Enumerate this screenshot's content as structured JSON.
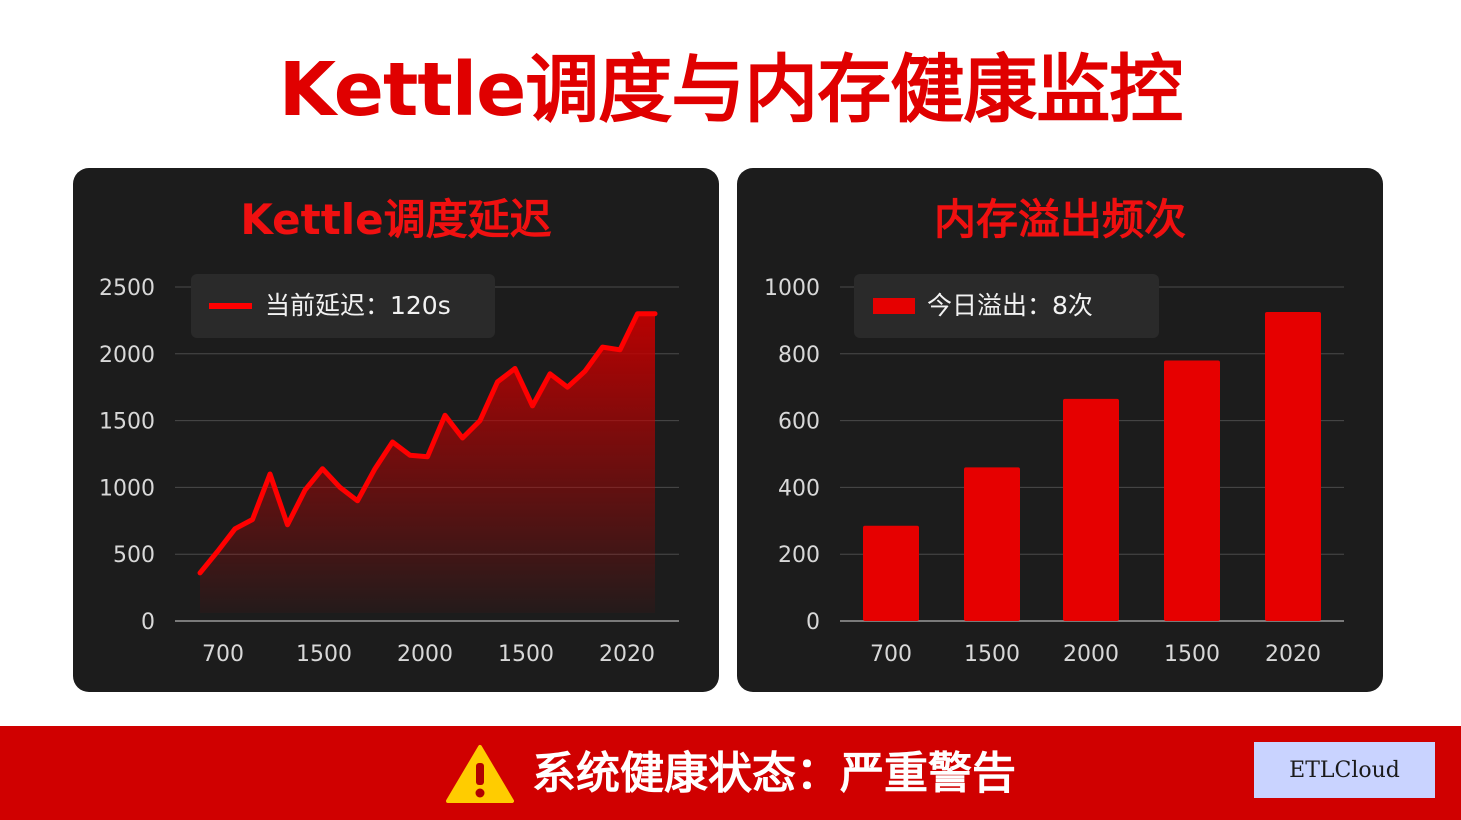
{
  "page": {
    "title": "Kettle调度与内存健康监控"
  },
  "banner": {
    "icon": "warning-icon",
    "status_text": "系统健康状态：严重警告",
    "badge": "ETLCloud",
    "colors": {
      "background": "#d00000",
      "icon": "#ffcc00",
      "badge_bg": "#c9d3ff"
    }
  },
  "chart_data": [
    {
      "type": "area",
      "title": "Kettle调度延迟",
      "legend": {
        "label": "当前延迟：120s",
        "placement": "top-left"
      },
      "x_tick_labels": [
        "700",
        "1500",
        "2000",
        "1500",
        "2020"
      ],
      "y_ticks": [
        0,
        500,
        1000,
        1500,
        2000,
        2500
      ],
      "ylim": [
        0,
        2500
      ],
      "grid": true,
      "color": "#ff0000",
      "values": [
        360,
        520,
        690,
        760,
        1100,
        720,
        980,
        1140,
        1000,
        900,
        1140,
        1340,
        1240,
        1230,
        1540,
        1370,
        1500,
        1790,
        1890,
        1610,
        1850,
        1750,
        1870,
        2050,
        2030,
        2300,
        2300
      ]
    },
    {
      "type": "bar",
      "title": "内存溢出频次",
      "legend": {
        "label": "今日溢出：8次",
        "placement": "top-left"
      },
      "categories": [
        "700",
        "1500",
        "2000",
        "1500",
        "2020"
      ],
      "values": [
        285,
        460,
        665,
        780,
        925
      ],
      "y_ticks": [
        0,
        200,
        400,
        600,
        800,
        1000
      ],
      "ylim": [
        0,
        1000
      ],
      "grid": true,
      "color": "#e60000"
    }
  ]
}
